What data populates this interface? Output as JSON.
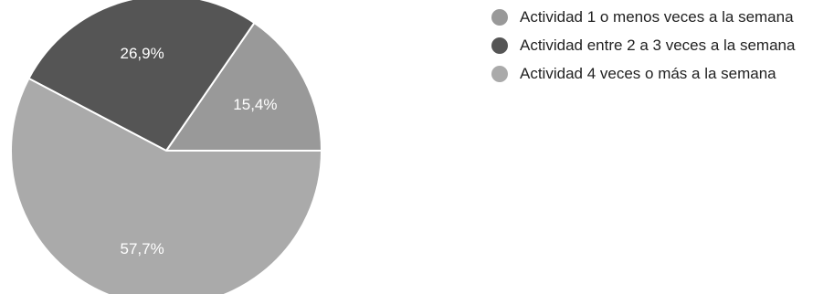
{
  "chart_data": {
    "type": "pie",
    "slices": [
      {
        "name": "Actividad 1 o menos veces a la semana",
        "value": 15.4,
        "label": "15,4%",
        "color": "#999999"
      },
      {
        "name": "Actividad entre 2 a 3 veces a la semana",
        "value": 26.9,
        "label": "26,9%",
        "color": "#555555"
      },
      {
        "name": "Actividad 4 veces o más a la semana",
        "value": 57.7,
        "label": "57,7%",
        "color": "#aaaaaa"
      }
    ],
    "start_angle_deg": 0,
    "direction": "counterclockwise",
    "legend_position": "right"
  }
}
